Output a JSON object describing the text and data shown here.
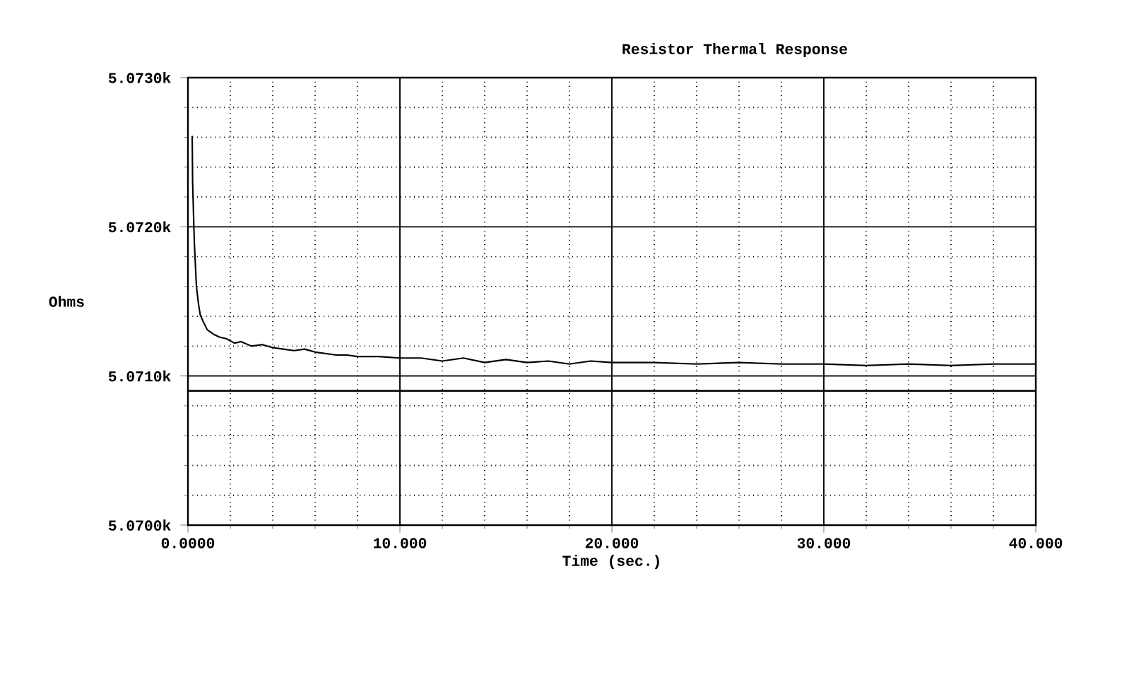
{
  "chart_data": {
    "type": "line",
    "title": "Resistor Thermal Response",
    "xlabel": "Time (sec.)",
    "ylabel": "Ohms",
    "x": [
      0.2,
      0.22,
      0.3,
      0.4,
      0.5,
      0.58,
      0.7,
      0.91,
      1.2,
      1.5,
      1.8,
      2.2,
      2.5,
      3.0,
      3.5,
      4.0,
      4.5,
      5.0,
      5.5,
      6.0,
      6.5,
      7.0,
      7.5,
      8.0,
      9.0,
      10.0,
      11,
      12,
      13,
      14,
      15,
      16,
      17,
      18,
      19,
      20,
      22,
      24,
      26,
      28,
      30,
      32,
      34,
      36,
      38,
      40
    ],
    "series": [
      {
        "color": "#000000",
        "values": [
          5.07261,
          5.0723,
          5.0719,
          5.0716,
          5.07148,
          5.07141,
          5.07137,
          5.07131,
          5.07128,
          5.07126,
          5.07125,
          5.07122,
          5.07123,
          5.0712,
          5.07121,
          5.07119,
          5.07118,
          5.07117,
          5.07118,
          5.07116,
          5.07115,
          5.07114,
          5.07114,
          5.07113,
          5.07113,
          5.07112,
          5.07112,
          5.0711,
          5.07112,
          5.07109,
          5.07111,
          5.07109,
          5.0711,
          5.07108,
          5.0711,
          5.07109,
          5.07109,
          5.07108,
          5.07109,
          5.07108,
          5.07108,
          5.07107,
          5.07108,
          5.07107,
          5.07108,
          5.07108
        ]
      }
    ],
    "xlim": [
      0,
      40
    ],
    "ylim": [
      5.07,
      5.073
    ],
    "xticks": [
      {
        "value": 0,
        "label": "0.0000"
      },
      {
        "value": 10,
        "label": "10.000"
      },
      {
        "value": 20,
        "label": "20.000"
      },
      {
        "value": 30,
        "label": "30.000"
      },
      {
        "value": 40,
        "label": "40.000"
      }
    ],
    "yticks": [
      {
        "value": 5.07,
        "label": "5.0700k"
      },
      {
        "value": 5.071,
        "label": "5.0710k"
      },
      {
        "value": 5.072,
        "label": "5.0720k"
      },
      {
        "value": 5.073,
        "label": "5.0730k"
      }
    ],
    "grid": true,
    "marker": "none",
    "line_style": "solid",
    "ref_lines": [
      {
        "axis": "y",
        "value": 5.0709,
        "color": "#000000"
      }
    ]
  }
}
